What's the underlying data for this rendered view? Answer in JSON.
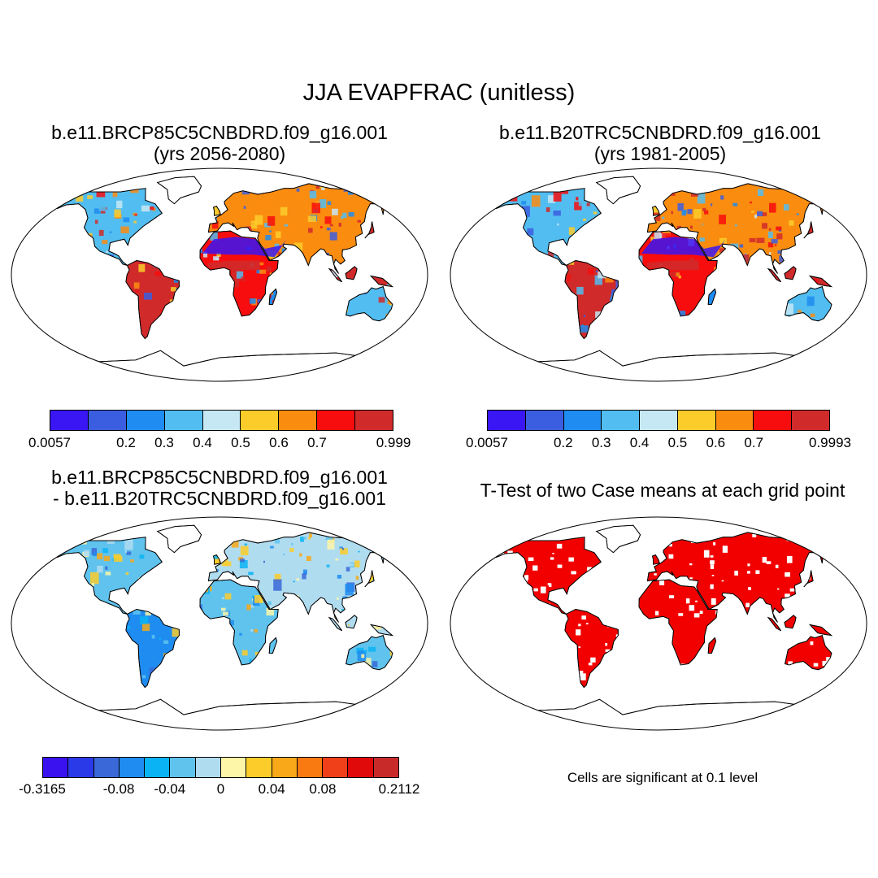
{
  "title": "JJA EVAPFRAC (unitless)",
  "panels": [
    {
      "title_line1": "b.e11.BRCP85C5CNBDRD.f09_g16.001",
      "title_line2": "(yrs 2056-2080)",
      "colorbar": {
        "colors": [
          "#3a16f5",
          "#3b5ee0",
          "#1e8cf0",
          "#52bdf0",
          "#c6e8f4",
          "#fbcc2a",
          "#fa8c10",
          "#f70d0d",
          "#d02a2a"
        ],
        "labels": [
          "0.0057",
          "0.2",
          "0.3",
          "0.4",
          "0.5",
          "0.6",
          "0.7",
          "0.999"
        ]
      }
    },
    {
      "title_line1": "b.e11.B20TRC5CNBDRD.f09_g16.001",
      "title_line2": "(yrs 1981-2005)",
      "colorbar": {
        "colors": [
          "#3a16f5",
          "#3b5ee0",
          "#1e8cf0",
          "#52bdf0",
          "#c6e8f4",
          "#fbcc2a",
          "#fa8c10",
          "#f70d0d",
          "#d02a2a"
        ],
        "labels": [
          "0.0057",
          "0.2",
          "0.3",
          "0.4",
          "0.5",
          "0.6",
          "0.7",
          "0.9993"
        ]
      }
    },
    {
      "title_line1": "b.e11.BRCP85C5CNBDRD.f09_g16.001",
      "title_line2": "- b.e11.B20TRC5CNBDRD.f09_g16.001",
      "colorbar": {
        "colors": [
          "#3a12f0",
          "#2a3ae8",
          "#3a68d8",
          "#1e8cf0",
          "#0ab4f4",
          "#5fc3ee",
          "#b0dcf0",
          "#fdf6a8",
          "#fbcc2a",
          "#f8a818",
          "#f87a10",
          "#f0401a",
          "#e00a0a",
          "#c82a2a"
        ],
        "labels": [
          "-0.3165",
          "-0.08",
          "-0.04",
          "0",
          "0.04",
          "0.08",
          "0.2112"
        ]
      }
    },
    {
      "title": "T-Test of two Case means at each grid point",
      "note": "Cells are significant at 0.1 level"
    }
  ]
}
